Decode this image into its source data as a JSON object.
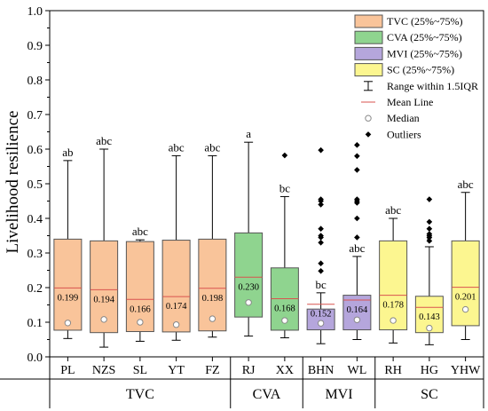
{
  "chart_data": {
    "type": "box",
    "ylabel": "Livelihood resilience",
    "ylim": [
      0,
      1.0
    ],
    "yticks": [
      0.0,
      0.1,
      0.2,
      0.3,
      0.4,
      0.5,
      0.6,
      0.7,
      0.8,
      0.9,
      1.0
    ],
    "grid": false,
    "legend_position": "top-right",
    "groups": [
      {
        "name": "TVC",
        "color": "#f9c49a",
        "legend": "TVC (25%~75%)"
      },
      {
        "name": "CVA",
        "color": "#8fd48f",
        "legend": "CVA (25%~75%)"
      },
      {
        "name": "MVI",
        "color": "#b5a6dc",
        "legend": "MVI (25%~75%)"
      },
      {
        "name": "SC",
        "color": "#fcf690",
        "legend": "SC (25%~75%)"
      }
    ],
    "legend_extra": [
      "Range within 1.5IQR",
      "Mean Line",
      "Median",
      "Outliers"
    ],
    "boxes": [
      {
        "label": "PL",
        "group": "TVC",
        "q1": 0.077,
        "q3": 0.34,
        "mean": 0.199,
        "median": 0.098,
        "wlow": 0.053,
        "whigh": 0.567,
        "sig": "ab",
        "outliers": []
      },
      {
        "label": "NZS",
        "group": "TVC",
        "q1": 0.07,
        "q3": 0.335,
        "mean": 0.194,
        "median": 0.108,
        "wlow": 0.028,
        "whigh": 0.6,
        "sig": "abc",
        "outliers": []
      },
      {
        "label": "SL",
        "group": "TVC",
        "q1": 0.073,
        "q3": 0.333,
        "mean": 0.166,
        "median": 0.1,
        "wlow": 0.045,
        "whigh": 0.338,
        "sig": "abc",
        "outliers": []
      },
      {
        "label": "YT",
        "group": "TVC",
        "q1": 0.072,
        "q3": 0.337,
        "mean": 0.174,
        "median": 0.093,
        "wlow": 0.048,
        "whigh": 0.581,
        "sig": "abc",
        "outliers": []
      },
      {
        "label": "FZ",
        "group": "TVC",
        "q1": 0.075,
        "q3": 0.34,
        "mean": 0.198,
        "median": 0.11,
        "wlow": 0.057,
        "whigh": 0.581,
        "sig": "abc",
        "outliers": []
      },
      {
        "label": "RJ",
        "group": "CVA",
        "q1": 0.115,
        "q3": 0.358,
        "mean": 0.23,
        "median": 0.157,
        "wlow": 0.06,
        "whigh": 0.62,
        "sig": "a",
        "outliers": []
      },
      {
        "label": "XX",
        "group": "CVA",
        "q1": 0.077,
        "q3": 0.257,
        "mean": 0.168,
        "median": 0.105,
        "wlow": 0.055,
        "whigh": 0.463,
        "sig": "bc",
        "outliers": [
          0.582
        ]
      },
      {
        "label": "BHN",
        "group": "MVI",
        "q1": 0.078,
        "q3": 0.138,
        "mean": 0.152,
        "median": 0.097,
        "wlow": 0.038,
        "whigh": 0.185,
        "sig": "bc",
        "outliers": [
          0.248,
          0.27,
          0.33,
          0.345,
          0.35,
          0.37,
          0.44,
          0.45,
          0.455,
          0.597
        ]
      },
      {
        "label": "WL",
        "group": "MVI",
        "q1": 0.078,
        "q3": 0.178,
        "mean": 0.164,
        "median": 0.107,
        "wlow": 0.05,
        "whigh": 0.29,
        "sig": "abc",
        "outliers": [
          0.345,
          0.4,
          0.445,
          0.45,
          0.455,
          0.54,
          0.58,
          0.612
        ]
      },
      {
        "label": "RH",
        "group": "SC",
        "q1": 0.078,
        "q3": 0.335,
        "mean": 0.178,
        "median": 0.105,
        "wlow": 0.04,
        "whigh": 0.4,
        "sig": "abc",
        "outliers": []
      },
      {
        "label": "HG",
        "group": "SC",
        "q1": 0.07,
        "q3": 0.175,
        "mean": 0.143,
        "median": 0.083,
        "wlow": 0.035,
        "whigh": 0.318,
        "sig": "c",
        "outliers": [
          0.335,
          0.345,
          0.35,
          0.355,
          0.37,
          0.39,
          0.455
        ]
      },
      {
        "label": "YHW",
        "group": "SC",
        "q1": 0.09,
        "q3": 0.335,
        "mean": 0.201,
        "median": 0.137,
        "wlow": 0.05,
        "whigh": 0.475,
        "sig": "abc",
        "outliers": []
      }
    ]
  }
}
